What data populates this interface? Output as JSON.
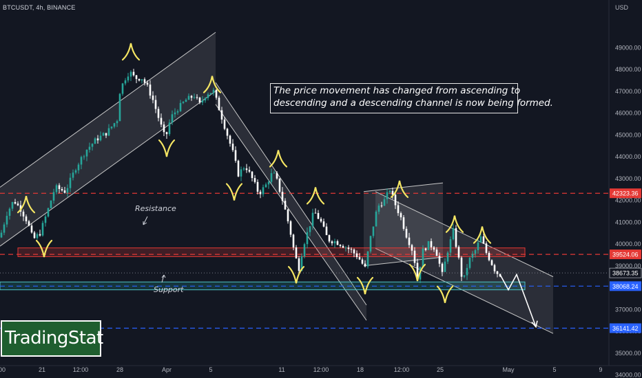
{
  "header": {
    "symbol_line": "BTCUSDT, 4h, BINANCE",
    "currency": "USD"
  },
  "annotations": {
    "callout_line1": "The price movement has changed from ascending to",
    "callout_line2": "descending and a descending channel is now being formed.",
    "resistance": "Resistance",
    "support": "Support"
  },
  "logo": {
    "text": "TradingStat",
    "bg": "#1f5e2f"
  },
  "colors": {
    "bg": "#131722",
    "up": "#26a69a",
    "down": "#ffffff",
    "resistance": "#e53935",
    "support": "#2962ff",
    "zigzag": "#f5e663"
  },
  "chart_data": {
    "type": "candlestick",
    "symbol": "BTCUSDT",
    "timeframe": "4h",
    "exchange": "BINANCE",
    "ylim": [
      34000,
      50000
    ],
    "y_ticks": [
      34000,
      35000,
      36000,
      37000,
      38000,
      39000,
      40000,
      41000,
      42000,
      43000,
      44000,
      45000,
      46000,
      47000,
      48000,
      49000
    ],
    "y_tick_labels": [
      "34000.00",
      "35000.00",
      "36000.00",
      "37000.00",
      "38000.00",
      "39000.00",
      "40000.00",
      "41000.00",
      "42000.00",
      "43000.00",
      "44000.00",
      "45000.00",
      "46000.00",
      "47000.00",
      "48000.00",
      "49000.00"
    ],
    "x_tick_labels": [
      "00",
      "21",
      "12:00",
      "28",
      "Apr",
      "5",
      "11",
      "12:00",
      "18",
      "12:00",
      "25",
      "May",
      "5",
      "9"
    ],
    "price_labels": [
      {
        "label": "42323.36",
        "value": 42323.36,
        "style": "red"
      },
      {
        "label": "39524.06",
        "value": 39524.06,
        "style": "red"
      },
      {
        "label": "38673.35",
        "value": 38673.35,
        "style": "current"
      },
      {
        "label": "38068.24",
        "value": 38068.24,
        "style": "blue"
      },
      {
        "label": "36141.42",
        "value": 36141.42,
        "style": "blue"
      }
    ],
    "horizontal_levels": [
      {
        "value": 42323.36,
        "style": "red-dashed"
      },
      {
        "value": 39524.06,
        "style": "red-dashed"
      },
      {
        "value": 38068.24,
        "style": "blue-dashed"
      },
      {
        "value": 36141.42,
        "style": "blue-dashed"
      }
    ],
    "zones": [
      {
        "name": "resistance",
        "low": 39420,
        "high": 39820
      },
      {
        "name": "support",
        "low": 37900,
        "high": 38260
      }
    ],
    "price_path": [
      [
        0,
        40300
      ],
      [
        10,
        41400
      ],
      [
        20,
        42000
      ],
      [
        30,
        41600
      ],
      [
        40,
        41000
      ],
      [
        48,
        40200
      ],
      [
        58,
        40500
      ],
      [
        70,
        41600
      ],
      [
        80,
        42600
      ],
      [
        95,
        42400
      ],
      [
        110,
        43500
      ],
      [
        125,
        44300
      ],
      [
        140,
        44800
      ],
      [
        155,
        45100
      ],
      [
        170,
        45700
      ],
      [
        172,
        46800
      ],
      [
        180,
        47500
      ],
      [
        188,
        47900
      ],
      [
        196,
        47600
      ],
      [
        206,
        47600
      ],
      [
        214,
        47200
      ],
      [
        222,
        46600
      ],
      [
        232,
        45600
      ],
      [
        240,
        44800
      ],
      [
        248,
        45800
      ],
      [
        258,
        46200
      ],
      [
        270,
        46600
      ],
      [
        282,
        46800
      ],
      [
        290,
        46400
      ],
      [
        300,
        46900
      ],
      [
        310,
        47000
      ],
      [
        318,
        46200
      ],
      [
        328,
        45200
      ],
      [
        338,
        44200
      ],
      [
        346,
        43200
      ],
      [
        356,
        43600
      ],
      [
        366,
        43000
      ],
      [
        376,
        42300
      ],
      [
        386,
        42700
      ],
      [
        396,
        43300
      ],
      [
        402,
        42900
      ],
      [
        412,
        41800
      ],
      [
        420,
        40800
      ],
      [
        428,
        39500
      ],
      [
        434,
        38900
      ],
      [
        440,
        39900
      ],
      [
        448,
        40700
      ],
      [
        456,
        41500
      ],
      [
        466,
        41000
      ],
      [
        476,
        40200
      ],
      [
        488,
        40100
      ],
      [
        500,
        39900
      ],
      [
        510,
        39700
      ],
      [
        520,
        39400
      ],
      [
        530,
        38900
      ],
      [
        538,
        40300
      ],
      [
        548,
        41700
      ],
      [
        558,
        42000
      ],
      [
        566,
        42500
      ],
      [
        574,
        41800
      ],
      [
        582,
        41200
      ],
      [
        590,
        40400
      ],
      [
        600,
        39600
      ],
      [
        606,
        38400
      ],
      [
        614,
        39700
      ],
      [
        622,
        40000
      ],
      [
        632,
        39800
      ],
      [
        642,
        38600
      ],
      [
        650,
        39700
      ],
      [
        658,
        40600
      ],
      [
        666,
        39300
      ],
      [
        672,
        38200
      ],
      [
        680,
        39200
      ],
      [
        690,
        39700
      ],
      [
        698,
        40300
      ],
      [
        706,
        39600
      ],
      [
        714,
        39100
      ],
      [
        720,
        38700
      ],
      [
        726,
        38600
      ]
    ],
    "zigzag_tops": [
      [
        38,
        42200
      ],
      [
        190,
        49200
      ],
      [
        308,
        47700
      ],
      [
        404,
        44300
      ],
      [
        458,
        42600
      ],
      [
        580,
        42900
      ],
      [
        660,
        41300
      ],
      [
        700,
        40800
      ]
    ],
    "zigzag_bottoms": [
      [
        64,
        39400
      ],
      [
        242,
        44000
      ],
      [
        340,
        42000
      ],
      [
        430,
        38200
      ],
      [
        530,
        37700
      ],
      [
        606,
        38300
      ],
      [
        646,
        37300
      ]
    ],
    "channels": [
      {
        "name": "ascending",
        "upper": [
          [
            0,
            42600
          ],
          [
            313,
            49700
          ]
        ],
        "lower": [
          [
            0,
            39900
          ],
          [
            313,
            47000
          ]
        ]
      },
      {
        "name": "descending-1",
        "upper": [
          [
            313,
            47400
          ],
          [
            532,
            37200
          ]
        ],
        "lower": [
          [
            313,
            46400
          ],
          [
            532,
            36500
          ]
        ]
      },
      {
        "name": "box",
        "upper": [
          [
            528,
            42400
          ],
          [
            643,
            42800
          ]
        ],
        "lower": [
          [
            528,
            39000
          ],
          [
            643,
            39400
          ]
        ]
      },
      {
        "name": "descending-2",
        "upper": [
          [
            545,
            42400
          ],
          [
            803,
            38500
          ]
        ],
        "lower": [
          [
            545,
            39800
          ],
          [
            803,
            35900
          ]
        ]
      }
    ],
    "forecast_arrow": [
      [
        726,
        38600
      ],
      [
        738,
        37900
      ],
      [
        750,
        38600
      ],
      [
        778,
        36200
      ]
    ]
  }
}
